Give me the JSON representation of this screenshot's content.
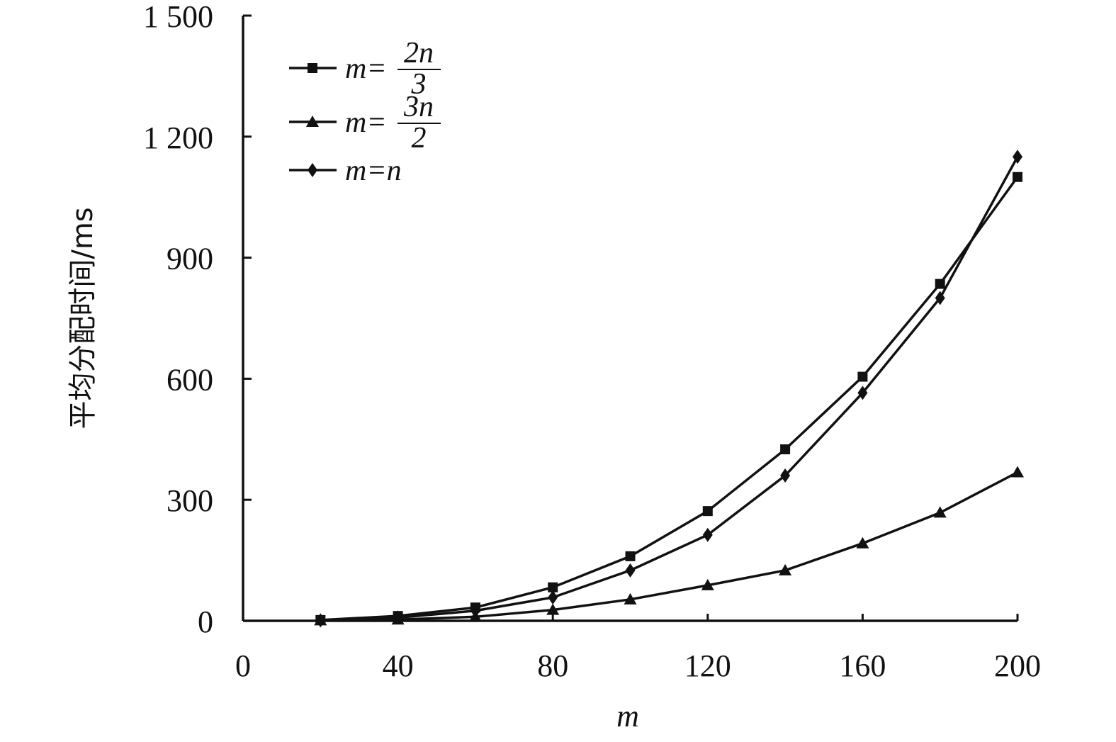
{
  "chart_data": {
    "type": "line",
    "xlabel": "m",
    "ylabel": "平均分配时间/ms",
    "xlim": [
      0,
      200
    ],
    "ylim": [
      0,
      1500
    ],
    "x_ticks": [
      "0",
      "40",
      "80",
      "120",
      "160",
      "200"
    ],
    "y_ticks": [
      "0",
      "300",
      "600",
      "900",
      "1 200",
      "1 500"
    ],
    "legend_position": "top-left",
    "grid": false,
    "x": [
      20,
      40,
      60,
      80,
      100,
      120,
      140,
      160,
      180,
      200
    ],
    "series": [
      {
        "name": "m=2n/3",
        "legend_parts": {
          "lhs": "m=",
          "num": "2n",
          "den": "3"
        },
        "marker": "square",
        "values": [
          2,
          12,
          33,
          83,
          160,
          272,
          425,
          605,
          835,
          1100
        ]
      },
      {
        "name": "m=3n/2",
        "legend_parts": {
          "lhs": "m=",
          "num": "3n",
          "den": "2"
        },
        "marker": "triangle",
        "values": [
          1,
          3,
          10,
          27,
          53,
          88,
          125,
          192,
          268,
          368
        ]
      },
      {
        "name": "m=n",
        "legend_parts": {
          "lhs": "m=n",
          "num": "",
          "den": ""
        },
        "marker": "diamond",
        "values": [
          1,
          8,
          25,
          58,
          125,
          213,
          360,
          565,
          800,
          1150
        ]
      }
    ],
    "colors": {
      "line": "#111111",
      "background": "#ffffff"
    }
  }
}
